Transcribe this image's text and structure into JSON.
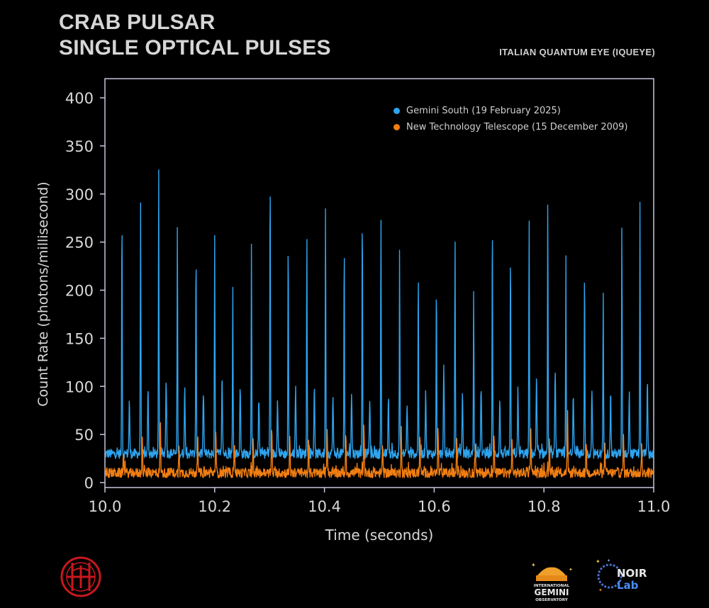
{
  "header": {
    "title_line1": "CRAB PULSAR",
    "title_line2": "SINGLE OPTICAL PULSES",
    "subtitle": "ITALIAN QUANTUM EYE (IQUEYE)"
  },
  "chart_data": {
    "type": "line",
    "xlabel": "Time (seconds)",
    "ylabel": "Count Rate (photons/millisecond)",
    "xlim": [
      10.0,
      11.0
    ],
    "ylim": [
      0,
      420
    ],
    "x_ticks": [
      "10.0",
      "10.2",
      "10.4",
      "10.6",
      "10.8",
      "11.0"
    ],
    "x_tick_values": [
      10.0,
      10.2,
      10.4,
      10.6,
      10.8,
      11.0
    ],
    "y_ticks": [
      "0",
      "50",
      "100",
      "150",
      "200",
      "250",
      "300",
      "350",
      "400"
    ],
    "y_tick_values": [
      0,
      50,
      100,
      150,
      200,
      250,
      300,
      350,
      400
    ],
    "grid": false,
    "legend_position": "top-right",
    "pulse_period_s": 0.0337,
    "series": [
      {
        "name": "Gemini South (19 February 2025)",
        "color": "#2ea3ee",
        "baseline": 30,
        "main_pulse_times": [
          10.031,
          10.065,
          10.098,
          10.132,
          10.166,
          10.2,
          10.233,
          10.267,
          10.301,
          10.334,
          10.368,
          10.402,
          10.436,
          10.469,
          10.503,
          10.537,
          10.571,
          10.604,
          10.638,
          10.672,
          10.706,
          10.739,
          10.773,
          10.807,
          10.84,
          10.874,
          10.908,
          10.942,
          10.975
        ],
        "main_pulse_peaks": [
          288,
          290,
          330,
          267,
          249,
          254,
          211,
          252,
          329,
          260,
          260,
          295,
          255,
          291,
          278,
          245,
          225,
          213,
          259,
          202,
          275,
          241,
          275,
          291,
          234,
          228,
          197,
          273,
          287
        ],
        "interpulse_peaks": [
          85,
          95,
          110,
          97,
          95,
          110,
          100,
          88,
          90,
          97,
          95,
          88,
          92,
          88,
          90,
          82,
          95,
          120,
          95,
          100,
          85,
          98,
          108,
          120,
          96,
          100,
          95,
          98,
          102
        ]
      },
      {
        "name": "New Technology Telescope (15 December 2009)",
        "color": "#f07e12",
        "baseline": 10,
        "main_pulse_times": [
          10.034,
          10.068,
          10.101,
          10.135,
          10.169,
          10.202,
          10.236,
          10.27,
          10.304,
          10.337,
          10.371,
          10.405,
          10.439,
          10.472,
          10.506,
          10.54,
          10.574,
          10.607,
          10.641,
          10.675,
          10.709,
          10.742,
          10.776,
          10.81,
          10.843,
          10.877,
          10.911,
          10.945,
          10.978
        ],
        "main_pulse_peaks": [
          35,
          45,
          62,
          40,
          48,
          55,
          45,
          42,
          58,
          44,
          42,
          58,
          45,
          56,
          40,
          62,
          48,
          58,
          44,
          38,
          50,
          44,
          62,
          48,
          72,
          44,
          40,
          50,
          36
        ]
      }
    ]
  },
  "logos": {
    "gemini_line1": "INTERNATIONAL",
    "gemini_line2": "GEMINI",
    "gemini_line3": "OBSERVATORY",
    "noir_line1": "NOIR",
    "noir_line2": "Lab"
  }
}
